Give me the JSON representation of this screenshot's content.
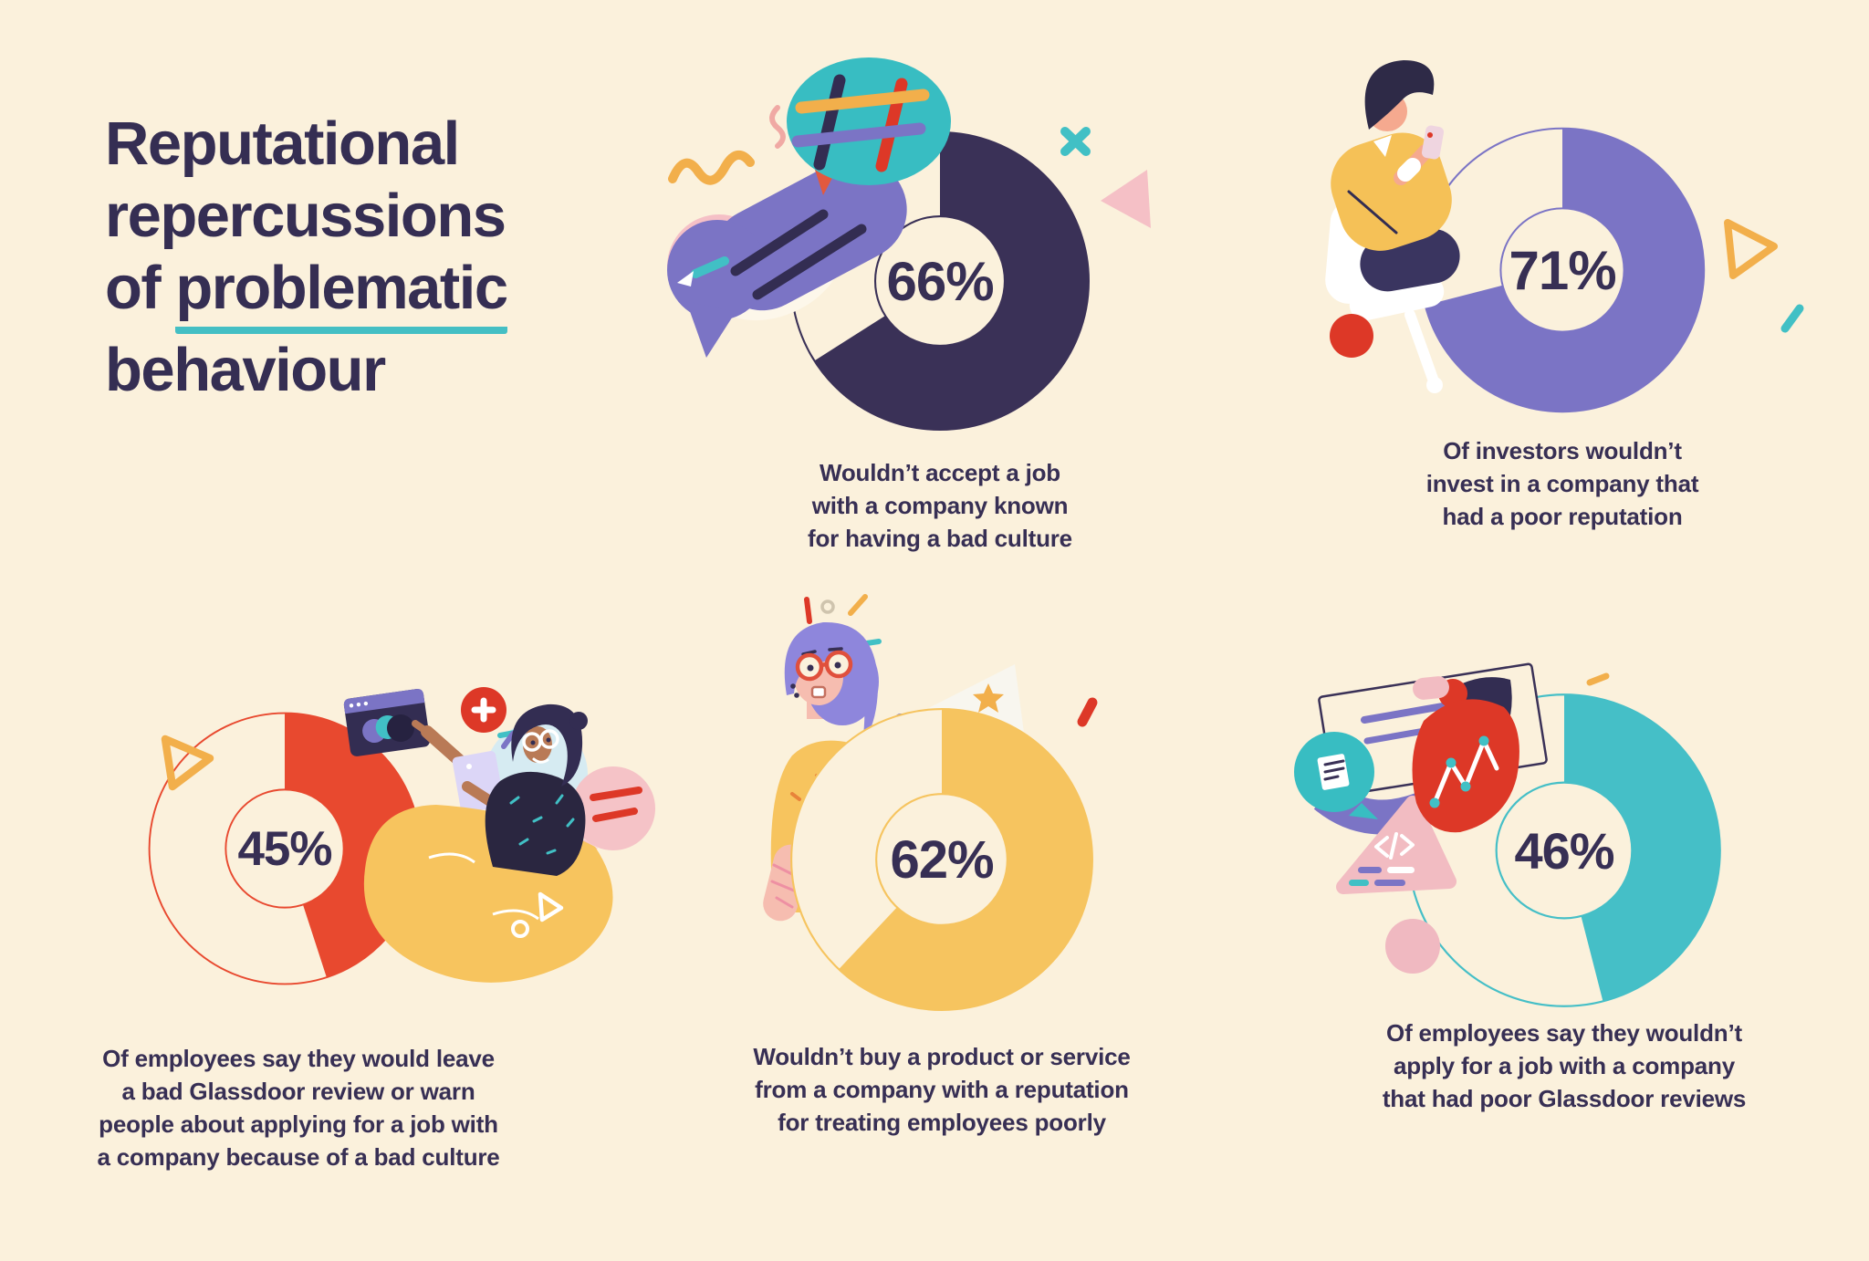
{
  "page": {
    "background": "#FBF1DC"
  },
  "palette": {
    "background": "#FBF1DC",
    "ink": "#372F54",
    "teal": "#41C0C5",
    "purple": "#7B74C5",
    "red": "#E8492F",
    "yellow": "#F6C45F",
    "navy": "#3A3157",
    "accent_red": "#DD3827",
    "accent_yellow": "#F2AF4B",
    "pink": "#F5C0C6",
    "underline": "#44BFC4"
  },
  "title": {
    "line1": "Reputational",
    "line2": "repercussions",
    "line3_prefix": "of ",
    "line3_underlined": "problematic",
    "line4": "behaviour"
  },
  "chart_data": [
    {
      "type": "pie",
      "variant": "donut",
      "percent": 66,
      "values": [
        66,
        34
      ],
      "center_label": "66%",
      "color": "#3A3157",
      "caption": "Wouldn’t accept a job with a company known for having a bad culture",
      "caption_lines": [
        "Wouldn’t accept a job",
        "with a company known",
        "for having a bad culture"
      ]
    },
    {
      "type": "pie",
      "variant": "donut",
      "percent": 71,
      "values": [
        71,
        29
      ],
      "center_label": "71%",
      "color": "#7B74C5",
      "caption": "Of investors wouldn’t invest in a company that had a poor reputation",
      "caption_lines": [
        "Of investors wouldn’t",
        "invest in a company that",
        "had a poor reputation"
      ]
    },
    {
      "type": "pie",
      "variant": "donut",
      "percent": 45,
      "values": [
        45,
        55
      ],
      "center_label": "45%",
      "color": "#E8492F",
      "caption": "Of employees say they would leave a bad Glassdoor review or warn people about applying for a job with a company because of a bad culture",
      "caption_lines": [
        "Of employees say they would leave",
        "a bad Glassdoor review or warn",
        "people about applying for a job with",
        "a company because of a bad culture"
      ]
    },
    {
      "type": "pie",
      "variant": "donut",
      "percent": 62,
      "values": [
        62,
        38
      ],
      "center_label": "62%",
      "color": "#F6C45F",
      "caption": "Wouldn’t buy a product or service from a company with a reputation for treating employees poorly",
      "caption_lines": [
        "Wouldn’t buy a product or service",
        "from a company with a reputation",
        "for treating employees poorly"
      ]
    },
    {
      "type": "pie",
      "variant": "donut",
      "percent": 46,
      "values": [
        46,
        54
      ],
      "center_label": "46%",
      "color": "#45BFC7",
      "caption": "Of employees say they wouldn’t apply for a job with a company that had poor Glassdoor reviews",
      "caption_lines": [
        "Of employees say they wouldn’t",
        "apply for a job with a company",
        "that had poor Glassdoor reviews"
      ]
    }
  ]
}
